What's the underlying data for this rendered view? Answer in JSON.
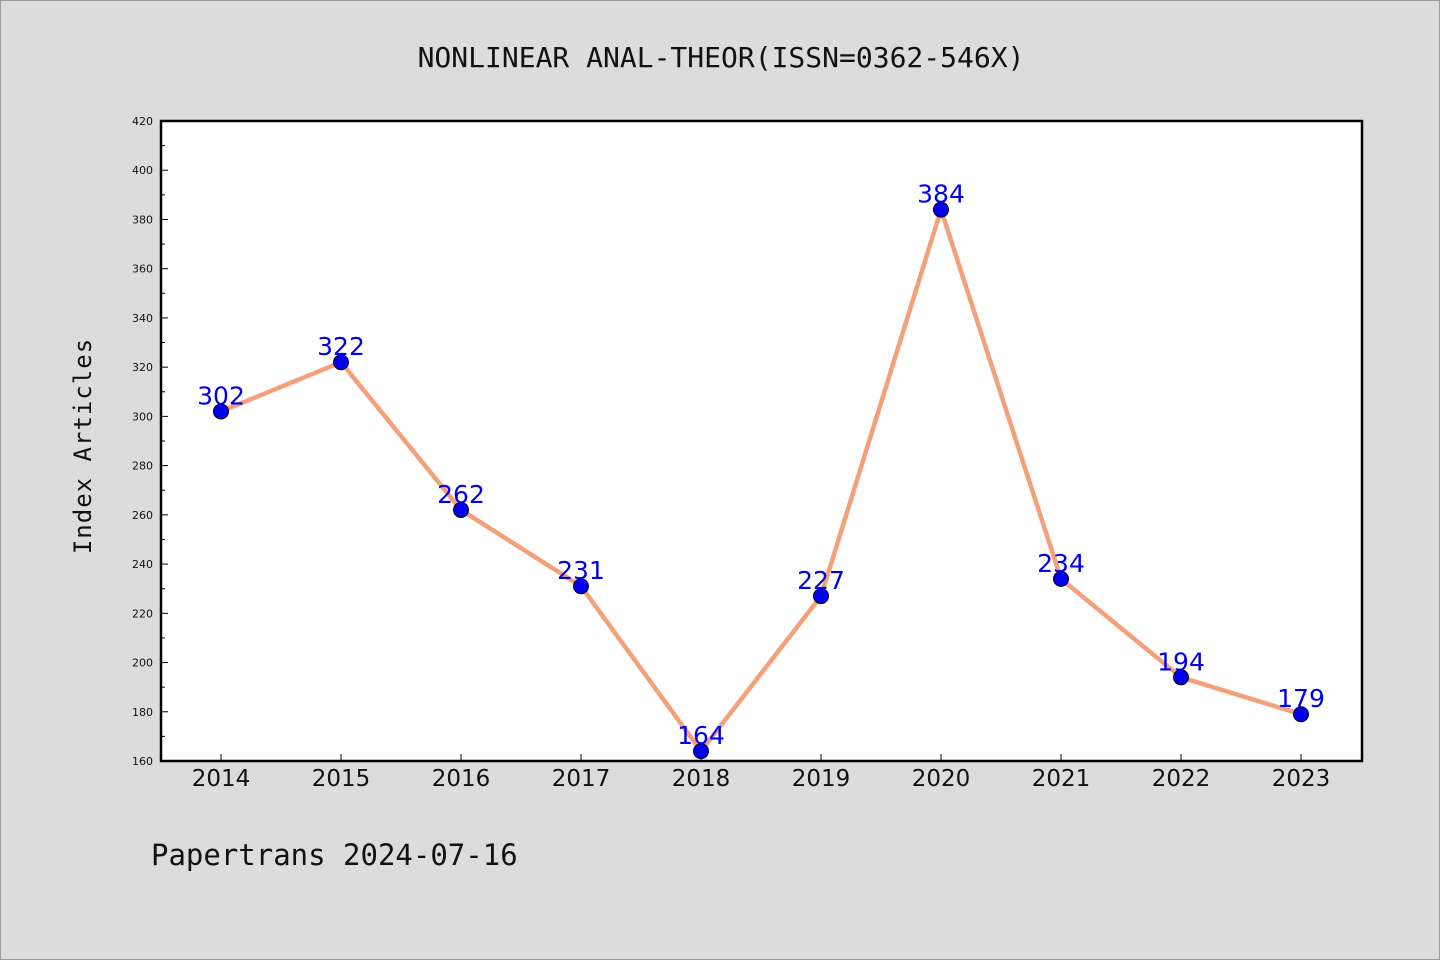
{
  "chart_data": {
    "type": "line",
    "title": "NONLINEAR ANAL-THEOR(ISSN=0362-546X)",
    "xlabel": "",
    "ylabel": "Index Articles",
    "categories": [
      "2014",
      "2015",
      "2016",
      "2017",
      "2018",
      "2019",
      "2020",
      "2021",
      "2022",
      "2023"
    ],
    "series": [
      {
        "values": [
          302,
          322,
          262,
          231,
          164,
          227,
          384,
          234,
          194,
          179
        ]
      }
    ],
    "ylim": [
      160,
      420
    ],
    "yticks": [
      160,
      180,
      200,
      220,
      240,
      260,
      280,
      300,
      320,
      340,
      360,
      380,
      400,
      420
    ],
    "grid": false,
    "line_color": "#f4a07a",
    "marker_color": "#0000ee",
    "label_color": "#0000ee"
  },
  "footer": "Papertrans 2024-07-16"
}
